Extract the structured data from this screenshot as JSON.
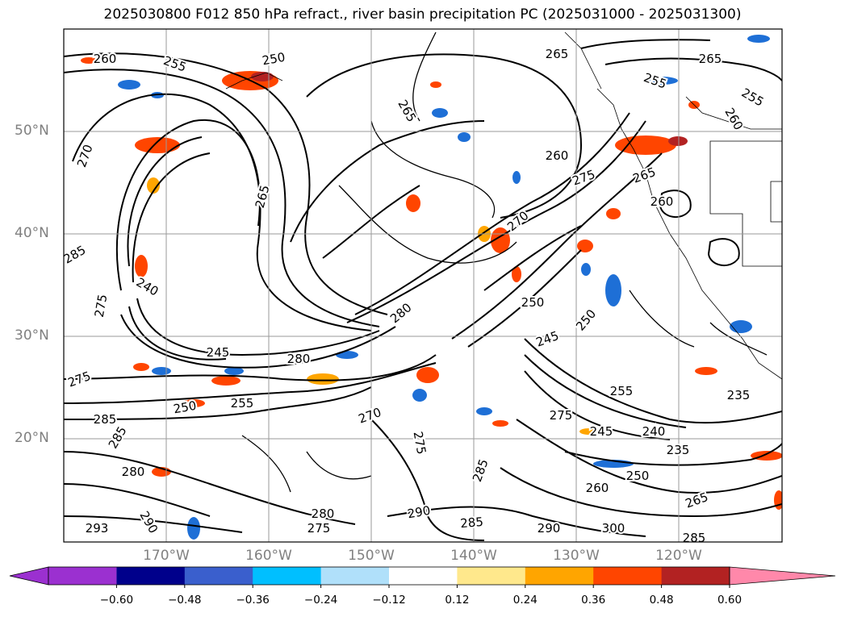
{
  "title": "2025030800 F012 850 hPa refract., river basin precipitation PC (2025031000 - 2025031300)",
  "lat_labels": [
    "50°N",
    "40°N",
    "30°N",
    "20°N"
  ],
  "lon_labels": [
    "170°W",
    "160°W",
    "150°W",
    "140°W",
    "130°W",
    "120°W"
  ],
  "colorbar": {
    "colors": [
      "#9b30d0",
      "#00008b",
      "#3a5fcd",
      "#00bfff",
      "#b0e0fa",
      "#ffffff",
      "#ffe88c",
      "#ffa500",
      "#ff4500",
      "#b22222",
      "#ff88aa"
    ],
    "ticks": [
      "−0.60",
      "−0.48",
      "−0.36",
      "−0.24",
      "−0.12",
      "0.12",
      "0.24",
      "0.36",
      "0.48",
      "0.60"
    ]
  },
  "contour_labels": [
    "260",
    "255",
    "250",
    "265",
    "265",
    "265",
    "255",
    "255",
    "265",
    "260",
    "270",
    "275",
    "265",
    "270",
    "260",
    "260",
    "285",
    "240",
    "275",
    "280",
    "245",
    "280",
    "275",
    "285",
    "285",
    "255",
    "250",
    "250",
    "245",
    "250",
    "255",
    "240",
    "245",
    "235",
    "275",
    "235",
    "285",
    "270",
    "275",
    "290",
    "285",
    "290",
    "280",
    "290",
    "275",
    "300",
    "285",
    "260",
    "250",
    "265",
    "280",
    "293"
  ]
}
